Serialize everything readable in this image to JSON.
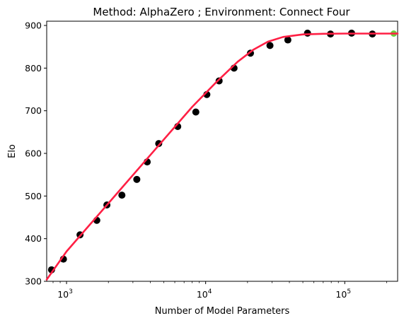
{
  "chart_data": {
    "type": "scatter",
    "title": "Method: AlphaZero ; Environment: Connect Four",
    "xlabel": "Number of Model Parameters",
    "ylabel": "Elo",
    "x_scale": "log",
    "xlim": [
      720,
      240000
    ],
    "ylim": [
      300,
      910
    ],
    "grid": false,
    "legend": "none",
    "x_ticks": [
      {
        "value": 1000,
        "base": "10",
        "exp": "3"
      },
      {
        "value": 10000,
        "base": "10",
        "exp": "4"
      },
      {
        "value": 100000,
        "base": "10",
        "exp": "5"
      }
    ],
    "y_ticks": [
      300,
      400,
      500,
      600,
      700,
      800,
      900
    ],
    "series": [
      {
        "kind": "points",
        "color": "#000000",
        "x": [
          780,
          950,
          1250,
          1650,
          1950,
          2500,
          3200,
          3800,
          4600,
          6300,
          8500,
          10200,
          12500,
          16000,
          21000,
          29000,
          39000,
          54000,
          79000,
          112000,
          158000
        ],
        "y": [
          327,
          352,
          409,
          443,
          479,
          502,
          539,
          580,
          623,
          663,
          697,
          738,
          770,
          800,
          835,
          853,
          866,
          882,
          880,
          882,
          880
        ]
      },
      {
        "kind": "highlight-point",
        "color": "#6bcf3c",
        "x": [
          225000
        ],
        "y": [
          881
        ]
      },
      {
        "kind": "fit-line",
        "color": "#ff1f44",
        "x": [
          720,
          1000,
          2000,
          4000,
          8000,
          12000,
          17000,
          22000,
          28000,
          36000,
          50000,
          70000,
          100000,
          150000,
          240000
        ],
        "y": [
          304,
          370,
          483,
          596,
          709,
          768,
          815,
          843,
          862,
          873,
          879,
          880.5,
          881,
          881,
          881
        ]
      }
    ]
  }
}
